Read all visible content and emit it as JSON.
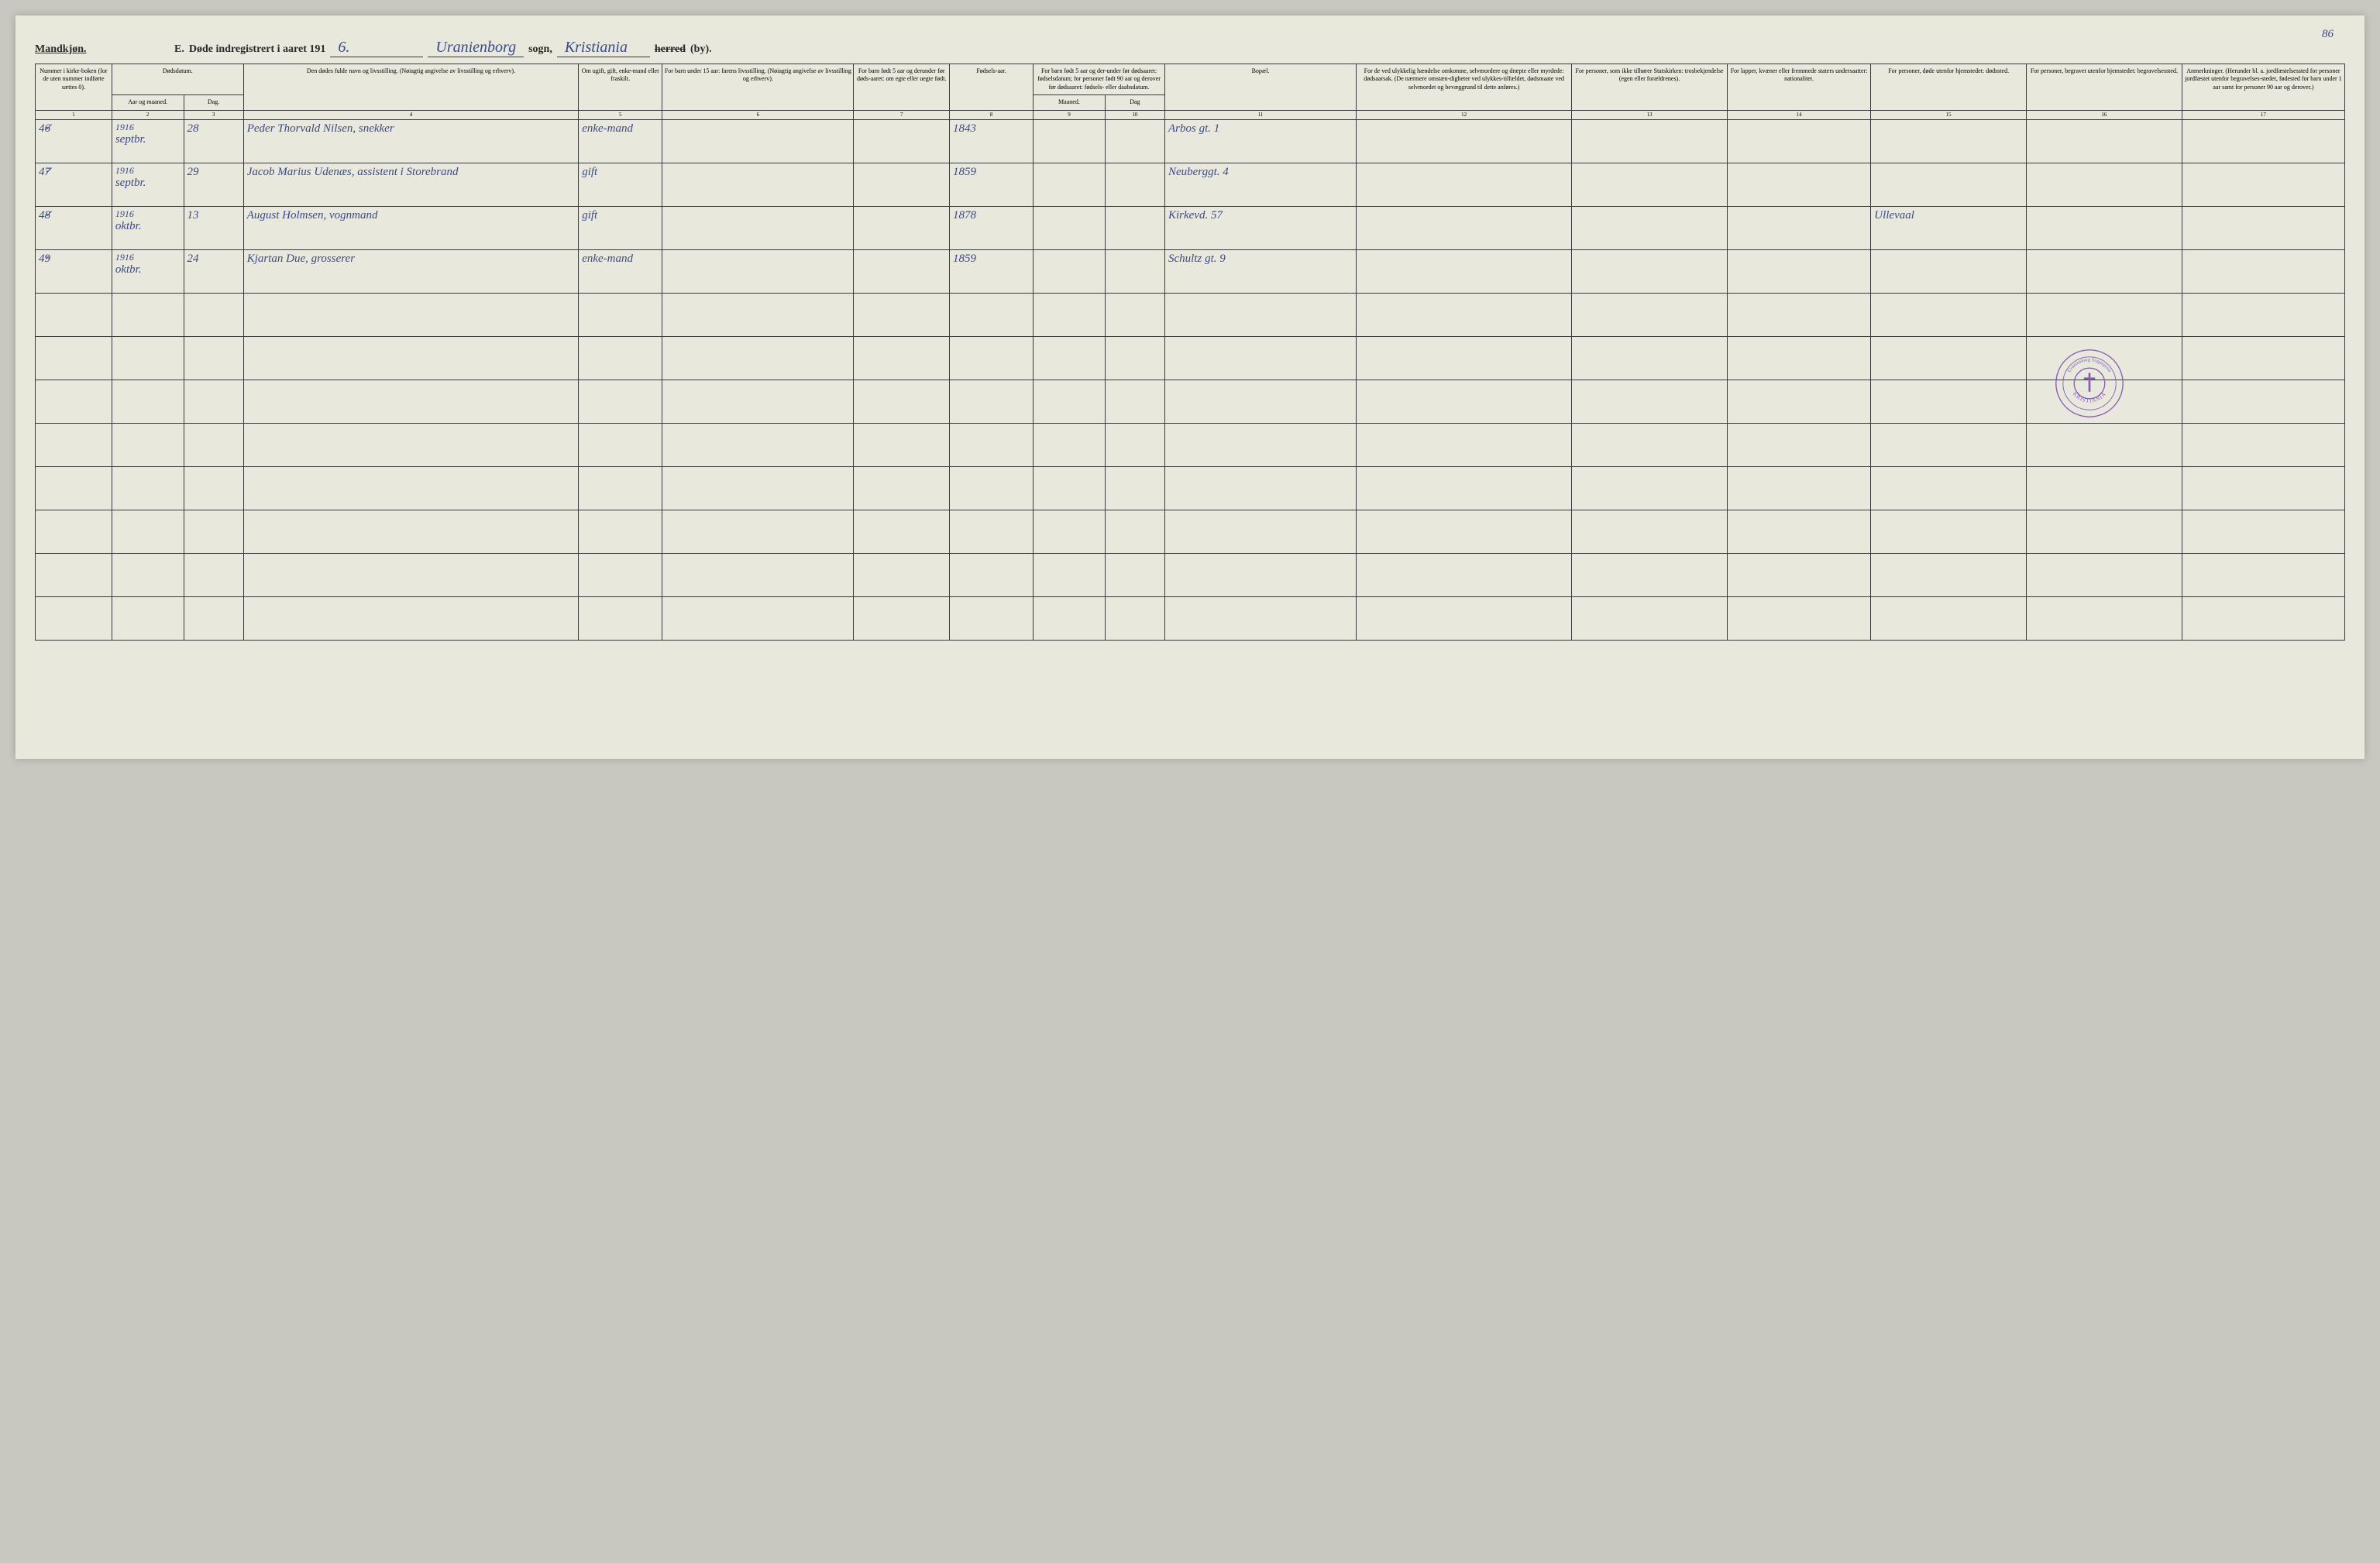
{
  "page_number": "86",
  "header": {
    "gender_label": "Mandkjøn.",
    "section_letter": "E.",
    "title_prefix": "Døde indregistrert i aaret 191",
    "year_suffix": "6.",
    "sogn_name": "Uranienborg",
    "sogn_label": "sogn,",
    "herred_name": "Kristiania",
    "herred_struck": "herred",
    "by_label": "(by)."
  },
  "columns": {
    "c1": "Nummer i kirke-boken (for de uten nummer indførte sættes 0).",
    "c2": "Dødsdatum.",
    "c2a": "Aar og maaned.",
    "c2b": "Dag.",
    "c4": "Den dødes fulde navn og livsstilling. (Nøiagtig angivelse av livsstilling og erhverv).",
    "c5": "Om ugift, gift, enke-mand eller fraskilt.",
    "c6": "For barn under 15 aar: farens livsstilling. (Nøiagtig angivelse av livsstilling og erhverv).",
    "c7": "For barn født 5 aar og derunder før døds-aaret: om egte eller uegte født.",
    "c8": "Fødsels-aar.",
    "c9_10": "For barn født 5 aar og der-under før dødsaaret: fødselsdatum; for personer født 90 aar og derover før dødsaaret: fødsels- eller daabsdatum.",
    "c9": "Maaned.",
    "c10": "Dag",
    "c11": "Bopæl.",
    "c12": "For de ved ulykkelig hændelse omkomne, selvmordere og dræpte eller myrdede: dødsaarsak. (De nærmere omstæn-digheter ved ulykkes-tilfældet, dødsmaate ved selvmordet og bevæggrund til dette anføres.)",
    "c13": "For personer, som ikke tilhører Statskirken: trosbekjendelse (egen eller forældrenes).",
    "c14": "For lapper, kvæner eller fremmede staters undersaatter: nationalitet.",
    "c15": "For personer, døde utenfor hjemstedet: dødssted.",
    "c16": "For personer, begravet utenfor hjemstedet: begravelsessted.",
    "c17": "Anmerkninger. (Herunder bl. a. jordfæstelsessted for personer jordfæstet utenfor begravelses-stedet, fødested for barn under 1 aar samt for personer 90 aar og derover.)"
  },
  "col_numbers": [
    "1",
    "2",
    "3",
    "4",
    "5",
    "6",
    "7",
    "8",
    "9",
    "10",
    "11",
    "12",
    "13",
    "14",
    "15",
    "16",
    "17"
  ],
  "rows": [
    {
      "check": "✓",
      "num": "46",
      "year_month": "1916 septbr.",
      "day": "28",
      "name": "Peder Thorvald Nilsen, snekker",
      "status": "enke-mand",
      "birth_year": "1843",
      "residence": "Arbos gt. 1"
    },
    {
      "check": "✓",
      "num": "47",
      "year_month": "1916 septbr.",
      "day": "29",
      "name": "Jacob Marius Udenæs, assistent i Storebrand",
      "status": "gift",
      "birth_year": "1859",
      "residence": "Neuberggt. 4"
    },
    {
      "check": "✓",
      "num": "48",
      "year_month": "1916 oktbr.",
      "day": "13",
      "name": "August Holmsen, vognmand",
      "status": "gift",
      "birth_year": "1878",
      "residence": "Kirkevd. 57",
      "death_place": "Ullevaal"
    },
    {
      "check": "×",
      "num": "49",
      "year_month": "1916 oktbr.",
      "day": "24",
      "name": "Kjartan Due, grosserer",
      "status": "enke-mand",
      "birth_year": "1859",
      "residence": "Schultz gt. 9"
    }
  ],
  "stamp": {
    "outer_text_top": "Uranienborg Sogneprest",
    "outer_text_bottom": "KRISTIANIA",
    "color": "#8a5db8"
  },
  "colors": {
    "page_bg": "#e8e8dc",
    "body_bg": "#c8c8c0",
    "ink_print": "#2a2a2a",
    "ink_hand": "#3a4a8a",
    "border": "#3a3a3a"
  }
}
